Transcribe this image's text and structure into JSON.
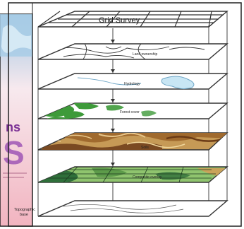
{
  "book_cover": {
    "title_fragment_top": "ns",
    "title_fragment_big": "S"
  },
  "layers": [
    {
      "label": "Grid Survey"
    },
    {
      "label": "Land ownership"
    },
    {
      "label": "Hydrology"
    },
    {
      "label": "Forest cover"
    },
    {
      "label": "Soils"
    },
    {
      "label": "Composite overlay"
    },
    {
      "label": "Topographic base"
    }
  ],
  "colors": {
    "frame_border": "#222222",
    "cover_top": "#9fc6e2",
    "cover_bottom": "#f2b4c0",
    "cover_title": "#7b2f94",
    "water": "#c8e6f4",
    "forest": "#3e9a3a",
    "soil_base": "#c69a56",
    "soil_dark": "#7a4a22",
    "composite": "#8fc46e",
    "composite_dark": "#2f6f3a",
    "stroke": "#333333"
  }
}
